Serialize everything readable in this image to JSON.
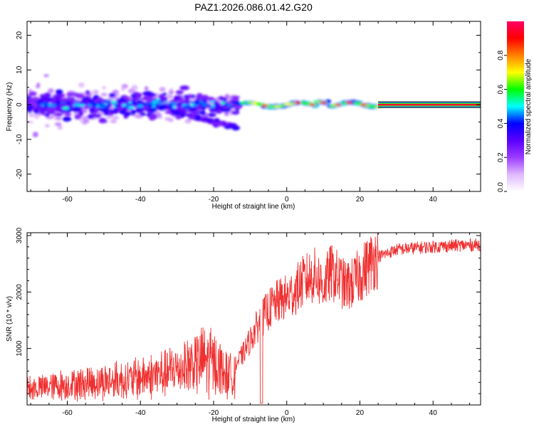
{
  "title": "PAZ1.2026.086.01.42.G20",
  "chart_data": [
    {
      "type": "heatmap",
      "title": "PAZ1.2026.086.01.42.G20",
      "xlabel": "Height of straight line (km)",
      "ylabel": "Frequency (Hz)",
      "xlim": [
        -71,
        53
      ],
      "ylim": [
        -25,
        24
      ],
      "x_ticks": [
        "-60",
        "-40",
        "-20",
        "0",
        "20",
        "40"
      ],
      "x_tick_values": [
        -60,
        -40,
        -20,
        0,
        20,
        40
      ],
      "y_ticks": [
        "20",
        "10",
        "0",
        "-10",
        "-20"
      ],
      "y_tick_values": [
        20,
        10,
        0,
        -10,
        -20
      ],
      "carrier_band": {
        "x_start": 25,
        "x_end": 53,
        "freq": 0,
        "amplitude": 0.95
      },
      "colorbar": {
        "label": "Normalized spectral amplitude",
        "ticks": [
          "0.0",
          "0.2",
          "0.4",
          "0.6",
          "0.8"
        ],
        "tick_values": [
          0.0,
          0.2,
          0.4,
          0.6,
          0.8
        ],
        "range": [
          0,
          1
        ],
        "colors": [
          "#ffffff",
          "#e0b8ff",
          "#9a3cff",
          "#5a00ff",
          "#0000ff",
          "#00ffff",
          "#00ff00",
          "#ffff00",
          "#ff8000",
          "#ff0000",
          "#ff0066"
        ]
      }
    },
    {
      "type": "line",
      "xlabel": "Height of straight line (km)",
      "ylabel": "SNR (10 * v/v)",
      "xlim": [
        -71,
        53
      ],
      "ylim": [
        0,
        3050
      ],
      "x_ticks": [
        "-60",
        "-40",
        "-20",
        "0",
        "20",
        "40"
      ],
      "x_tick_values": [
        -60,
        -40,
        -20,
        0,
        20,
        40
      ],
      "y_ticks": [
        "3000",
        "2000",
        "1000"
      ],
      "y_tick_values": [
        3000,
        2000,
        1000
      ],
      "series": [
        {
          "name": "SNR",
          "color": "#f03030",
          "x": [
            -71,
            -68,
            -65,
            -62,
            -59,
            -56,
            -53,
            -50,
            -47,
            -44,
            -41,
            -38,
            -35,
            -32,
            -29,
            -26,
            -23,
            -20,
            -18,
            -16,
            -14,
            -12,
            -10,
            -8,
            -6,
            -4,
            -2,
            0,
            2,
            4,
            6,
            8,
            10,
            12,
            14,
            16,
            18,
            20,
            22,
            24,
            26,
            28,
            30,
            35,
            40,
            45,
            50,
            53
          ],
          "y": [
            280,
            300,
            330,
            350,
            370,
            390,
            400,
            420,
            430,
            450,
            470,
            500,
            540,
            580,
            650,
            720,
            800,
            750,
            650,
            500,
            700,
            900,
            1150,
            1400,
            1600,
            1750,
            1850,
            1900,
            2000,
            2150,
            2250,
            2300,
            2100,
            2350,
            2250,
            2100,
            2150,
            2300,
            2450,
            2600,
            2650,
            2700,
            2750,
            2780,
            2800,
            2820,
            2830,
            2840
          ]
        }
      ]
    }
  ]
}
